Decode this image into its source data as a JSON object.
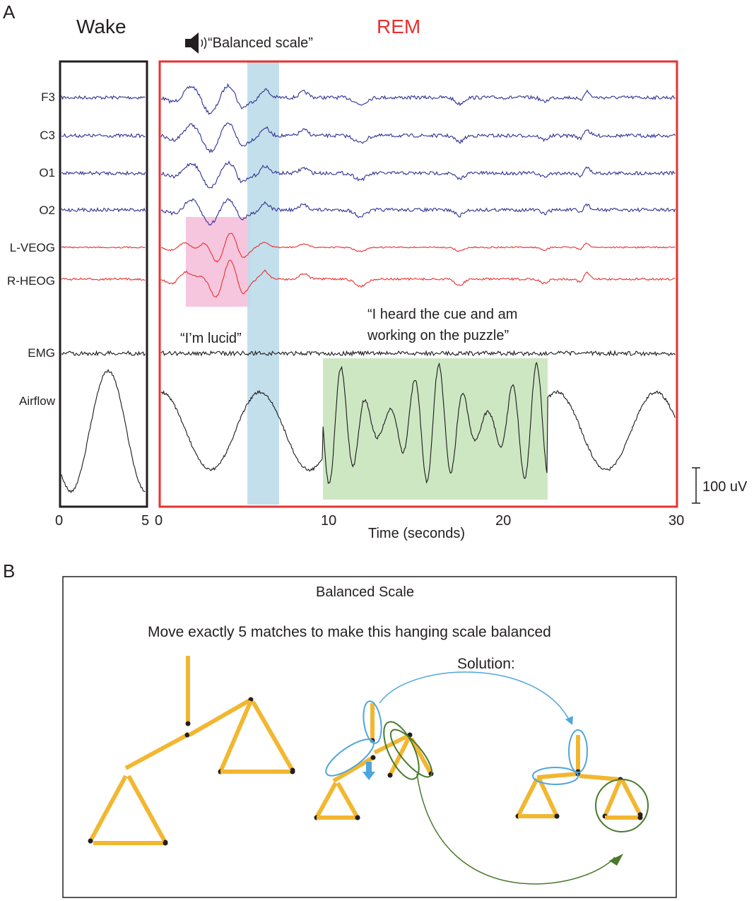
{
  "panel_a": {
    "letter": "A",
    "wake_title": "Wake",
    "rem_title": "REM",
    "cue_text": "“Balanced scale”",
    "cue_icon": "speaker-icon",
    "channels": [
      "F3",
      "C3",
      "O1",
      "O2",
      "L-VEOG",
      "R-HEOG",
      "EMG",
      "Airflow"
    ],
    "channel_colors": {
      "eeg": "#2e3192",
      "eog": "#e8312f",
      "other": "#1a1a1a"
    },
    "wake_ticks": [
      "0",
      "5"
    ],
    "rem_ticks": [
      "0",
      "10",
      "20",
      "30"
    ],
    "xlabel": "Time (seconds)",
    "scale_bar": "100 uV",
    "quote_lucid": "“I’m lucid”",
    "quote_cue_line1": "“I heard the cue and am",
    "quote_cue_line2": "working on the puzzle”",
    "highlight_colors": {
      "lucid": "#f6c6df",
      "cue": "#bcdcea",
      "puzzle": "#cde7c3"
    }
  },
  "panel_b": {
    "letter": "B",
    "title": "Balanced Scale",
    "instruction": "Move exactly 5 matches to make this hanging scale balanced",
    "solution_label": "Solution:",
    "colors": {
      "match": "#f2b731",
      "blue": "#4ea6dc",
      "green": "#4a7a2c"
    }
  }
}
